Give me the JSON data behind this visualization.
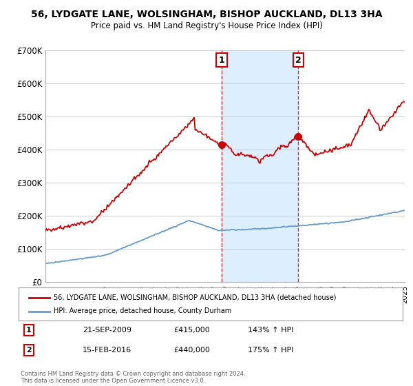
{
  "title": "56, LYDGATE LANE, WOLSINGHAM, BISHOP AUCKLAND, DL13 3HA",
  "subtitle": "Price paid vs. HM Land Registry's House Price Index (HPI)",
  "ylim": [
    0,
    700000
  ],
  "yticks": [
    0,
    100000,
    200000,
    300000,
    400000,
    500000,
    600000,
    700000
  ],
  "ytick_labels": [
    "£0",
    "£100K",
    "£200K",
    "£300K",
    "£400K",
    "£500K",
    "£600K",
    "£700K"
  ],
  "sale1_date": 2009.72,
  "sale1_price": 415000,
  "sale1_label": "1",
  "sale1_text_date": "21-SEP-2009",
  "sale1_text_price": "£415,000",
  "sale1_text_hpi": "143% ↑ HPI",
  "sale2_date": 2016.12,
  "sale2_price": 440000,
  "sale2_label": "2",
  "sale2_text_date": "15-FEB-2016",
  "sale2_text_price": "£440,000",
  "sale2_text_hpi": "175% ↑ HPI",
  "legend_line1": "56, LYDGATE LANE, WOLSINGHAM, BISHOP AUCKLAND, DL13 3HA (detached house)",
  "legend_line2": "HPI: Average price, detached house, County Durham",
  "footnote": "Contains HM Land Registry data © Crown copyright and database right 2024.\nThis data is licensed under the Open Government Licence v3.0.",
  "house_color": "#cc0000",
  "hpi_color": "#6699cc",
  "shading_color": "#ddeeff",
  "vline_color": "#cc0000",
  "background_color": "#ffffff",
  "xmin": 1995,
  "xmax": 2025
}
